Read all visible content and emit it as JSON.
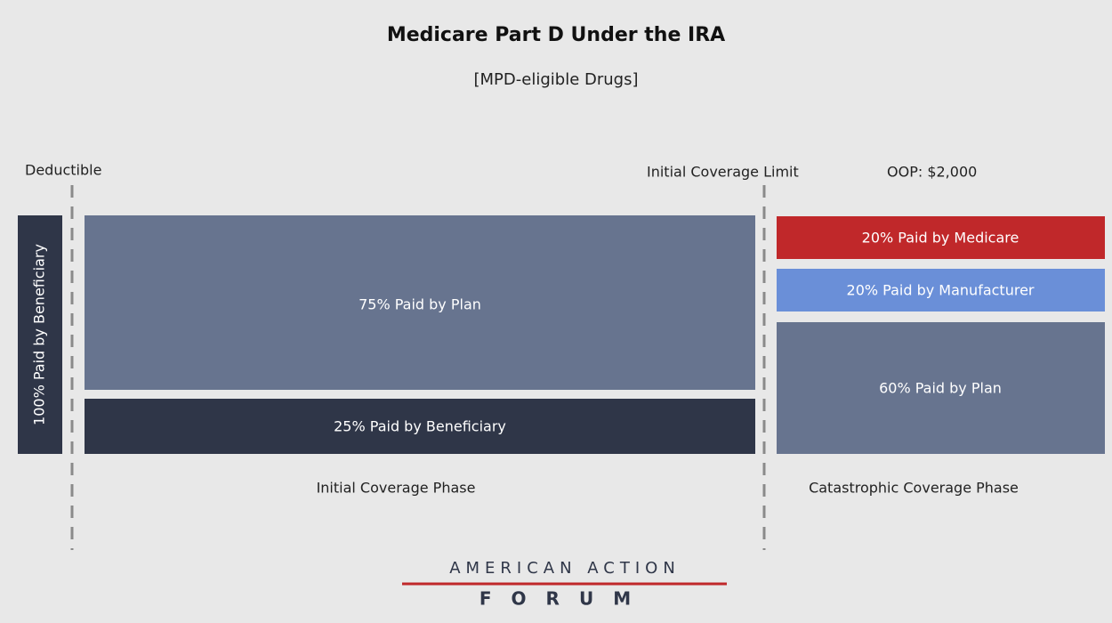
{
  "header": {
    "title": "Medicare Part D Under the IRA",
    "subtitle": "[MPD-eligible Drugs]"
  },
  "markers": [
    "Deductible",
    "Initial Coverage Limit",
    "OOP: $2,000"
  ],
  "deductible_block": "100% Paid by Beneficiary",
  "initial_phase": {
    "label": "Initial Coverage Phase",
    "blocks": [
      "75% Paid by Plan",
      "25% Paid by Beneficiary"
    ]
  },
  "catastrophic_phase": {
    "label": "Catastrophic Coverage Phase",
    "blocks": [
      "20% Paid by Medicare",
      "20% Paid by Manufacturer",
      "60% Paid by Plan"
    ]
  },
  "logo": {
    "line1": "AMERICAN ACTION",
    "line2": "FORUM"
  }
}
